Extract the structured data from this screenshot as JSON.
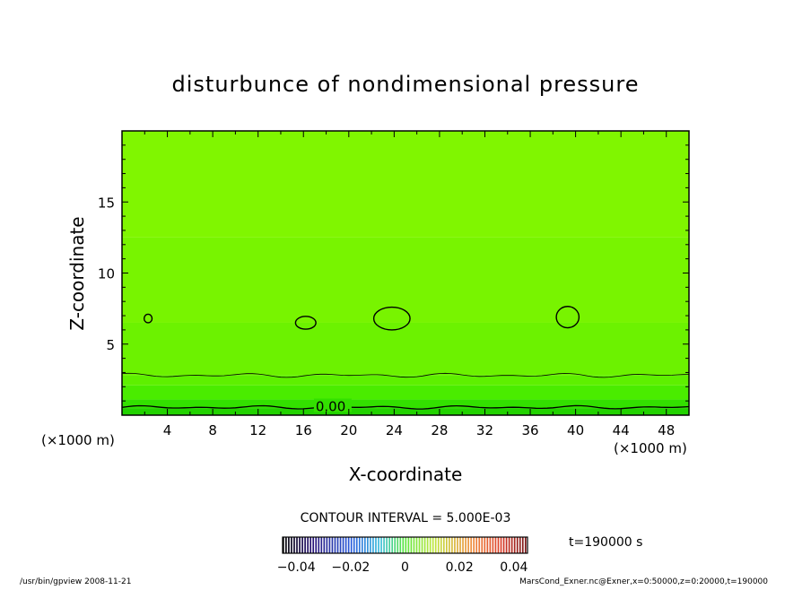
{
  "chart_data": {
    "type": "contour",
    "title": "disturbunce of nondimensional pressure",
    "xlabel": "X-coordinate",
    "ylabel": "Z-coordinate",
    "x_unit_left": "(×1000 m)",
    "x_unit_right": "(×1000 m)",
    "xlim": [
      0,
      50
    ],
    "ylim": [
      0,
      20
    ],
    "x_ticks": [
      4,
      8,
      12,
      16,
      20,
      24,
      28,
      32,
      36,
      40,
      44,
      48
    ],
    "y_ticks": [
      5,
      10,
      15
    ],
    "contour_labels": [
      {
        "x": 17,
        "y": 0.6,
        "text": "0.00"
      }
    ],
    "contour_interval_text": "CONTOUR INTERVAL = 5.000E-03",
    "time_text": "t=190000 s",
    "colorbar": {
      "range": [
        -0.045,
        0.045
      ],
      "tick_values": [
        -0.04,
        -0.02,
        0,
        0.02,
        0.04
      ],
      "tick_labels": [
        "−0.04",
        "−0.02",
        "0",
        "0.02",
        "0.04"
      ]
    },
    "field_levels": [
      {
        "zmin": 0,
        "zmax": 0.5,
        "color": "#22d200"
      },
      {
        "zmin": 0.5,
        "zmax": 1.1,
        "color": "#33e000"
      },
      {
        "zmin": 1.1,
        "zmax": 2.1,
        "color": "#4aec00"
      },
      {
        "zmin": 2.1,
        "zmax": 2.8,
        "color": "#5ef000"
      },
      {
        "zmin": 2.8,
        "zmax": 6.5,
        "color": "#6cf200"
      },
      {
        "zmin": 6.5,
        "zmax": 12.5,
        "color": "#78f400"
      },
      {
        "zmin": 12.5,
        "zmax": 20,
        "color": "#80f600"
      }
    ],
    "isolines": [
      {
        "type": "h",
        "z": 0.55,
        "amp": 0.12
      },
      {
        "type": "h",
        "z": 2.8,
        "amp": 0.15
      }
    ],
    "closed_contours": [
      {
        "cx": 2.3,
        "cy": 6.8,
        "rx": 0.35,
        "ry": 0.3
      },
      {
        "cx": 16.2,
        "cy": 6.5,
        "rx": 0.9,
        "ry": 0.45
      },
      {
        "cx": 23.8,
        "cy": 6.8,
        "rx": 1.6,
        "ry": 0.8
      },
      {
        "cx": 39.3,
        "cy": 6.9,
        "rx": 1.0,
        "ry": 0.75
      }
    ]
  },
  "footer": {
    "left": "/usr/bin/gpview   2008-11-21",
    "right": "MarsCond_Exner.nc@Exner,x=0:50000,z=0:20000,t=190000"
  }
}
